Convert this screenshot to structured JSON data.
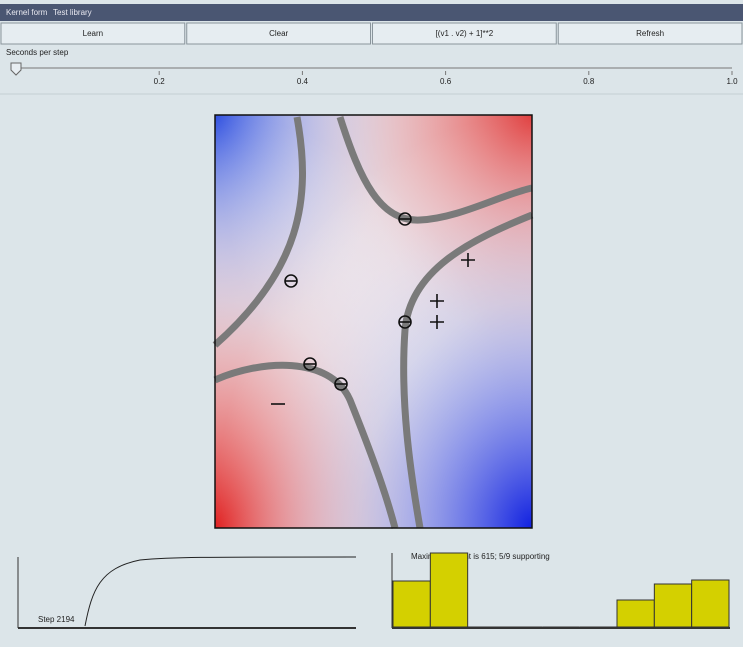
{
  "menu": [
    "Kernel form",
    "Test library"
  ],
  "buttons": [
    "Learn",
    "Clear",
    "[(v1 . v2) + 1]**2",
    "Refresh"
  ],
  "slider": {
    "label": "Seconds per step",
    "range": [
      0,
      1
    ],
    "value": 0,
    "ticks": [
      0.2,
      0.4,
      0.6,
      0.8,
      {
        "value": 1,
        "label": "1.0"
      }
    ]
  },
  "learning_curve": {
    "label": "Step 2194"
  },
  "weights": {
    "label": "Maximum weight is 615; 5/9 supporting",
    "values": [
      46,
      74,
      0,
      0,
      0,
      0,
      27,
      43,
      47
    ]
  }
}
